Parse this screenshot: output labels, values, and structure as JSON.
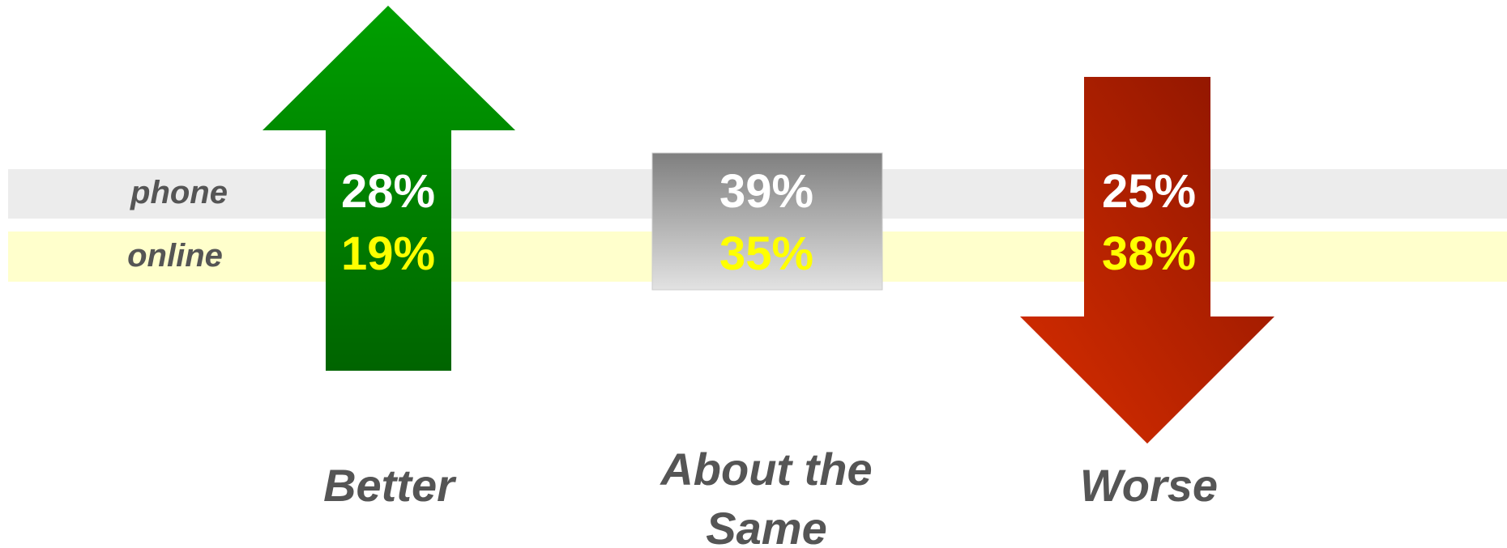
{
  "rows": [
    {
      "label": "phone"
    },
    {
      "label": "online"
    }
  ],
  "columns": [
    {
      "label": "Better",
      "values": [
        "28%",
        "19%"
      ]
    },
    {
      "label": "About the Same",
      "values": [
        "39%",
        "35%"
      ]
    },
    {
      "label": "Worse",
      "values": [
        "25%",
        "38%"
      ]
    }
  ]
}
